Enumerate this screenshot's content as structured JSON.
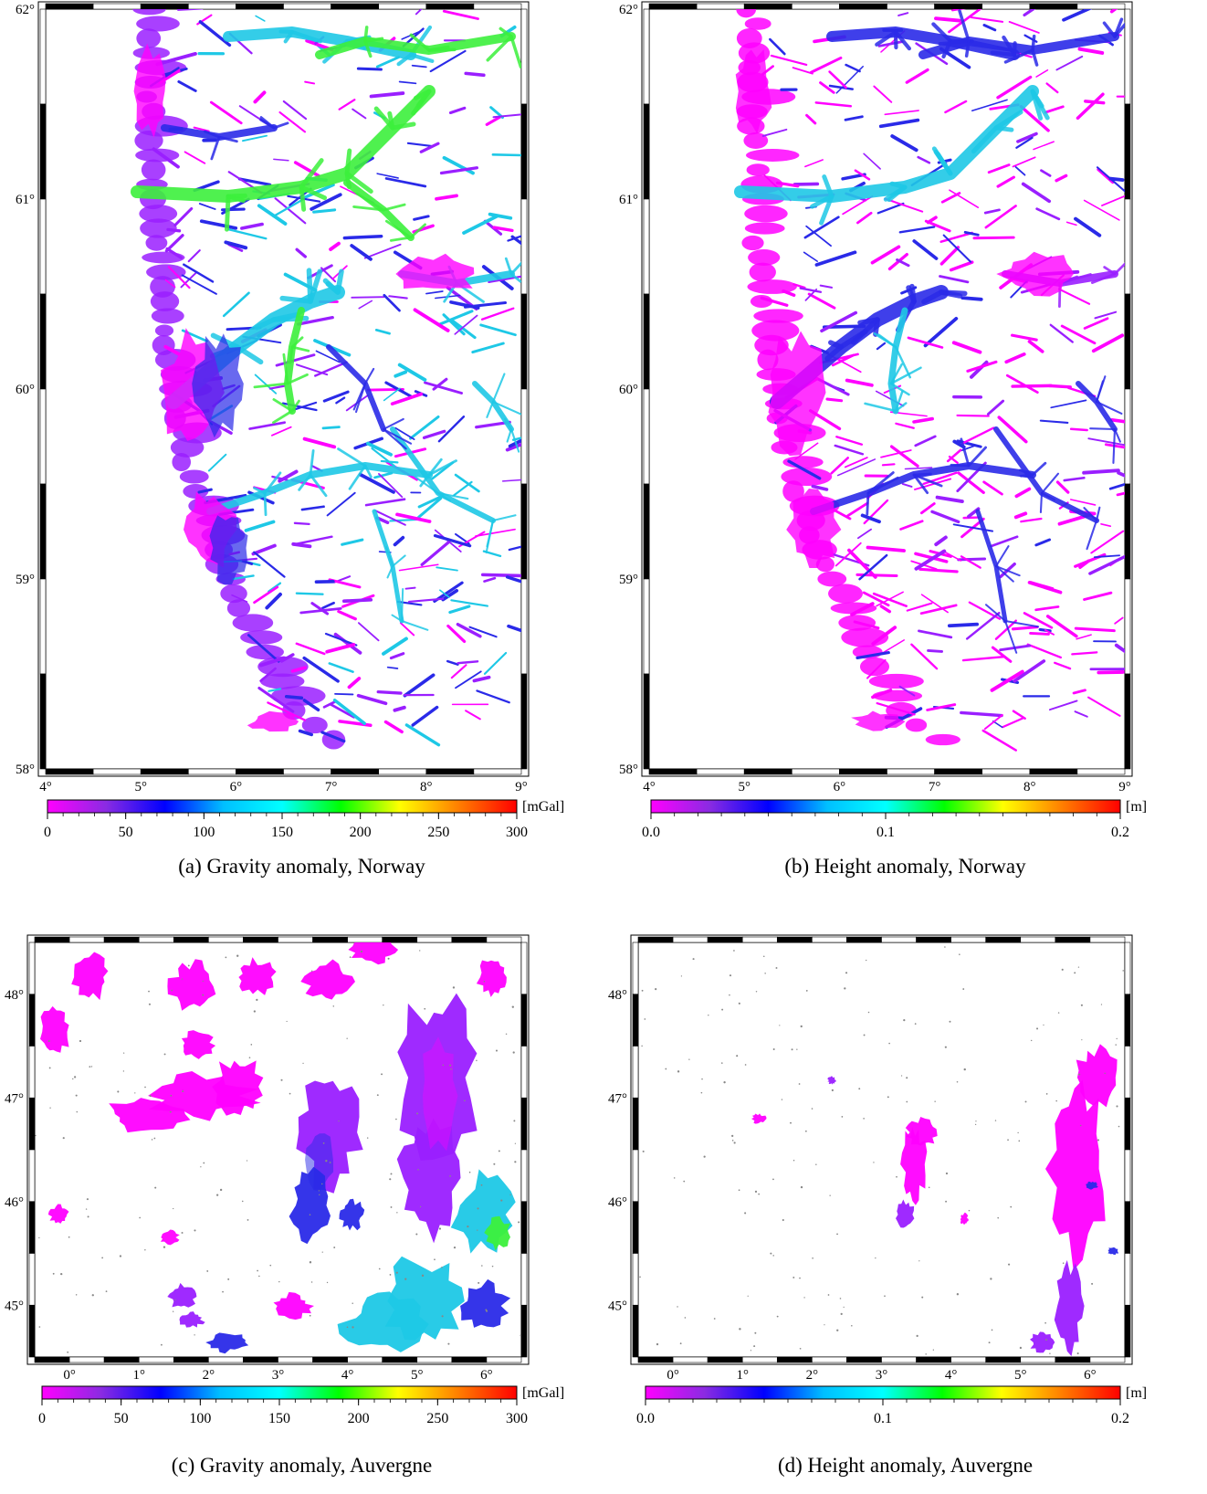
{
  "panels": [
    {
      "id": "a",
      "caption": "(a) Gravity anomaly, Norway",
      "region": "norway",
      "lat_ticks": [
        "58°",
        "59°",
        "60°",
        "61°",
        "62°"
      ],
      "lon_ticks": [
        "4°",
        "5°",
        "6°",
        "7°",
        "8°",
        "9°"
      ],
      "colorbar": {
        "unit": "[mGal]",
        "min": 0,
        "max": 300,
        "labels": [
          "0",
          "50",
          "100",
          "150",
          "200",
          "250",
          "300"
        ]
      },
      "palette": "gravity"
    },
    {
      "id": "b",
      "caption": "(b) Height anomaly, Norway",
      "region": "norway",
      "lat_ticks": [
        "58°",
        "59°",
        "60°",
        "61°",
        "62°"
      ],
      "lon_ticks": [
        "4°",
        "5°",
        "6°",
        "7°",
        "8°",
        "9°"
      ],
      "colorbar": {
        "unit": "[m]",
        "min": 0.0,
        "max": 0.2,
        "labels": [
          "0.0",
          "0.1",
          "0.2"
        ]
      },
      "palette": "height"
    },
    {
      "id": "c",
      "caption": "(c) Gravity anomaly, Auvergne",
      "region": "auvergne",
      "lat_ticks": [
        "45°",
        "46°",
        "47°",
        "48°"
      ],
      "lon_ticks": [
        "0°",
        "1°",
        "2°",
        "3°",
        "4°",
        "5°",
        "6°"
      ],
      "colorbar": {
        "unit": "[mGal]",
        "min": 0,
        "max": 300,
        "labels": [
          "0",
          "50",
          "100",
          "150",
          "200",
          "250",
          "300"
        ]
      },
      "palette": "gravity"
    },
    {
      "id": "d",
      "caption": "(d) Height anomaly, Auvergne",
      "region": "auvergne",
      "lat_ticks": [
        "45°",
        "46°",
        "47°",
        "48°"
      ],
      "lon_ticks": [
        "0°",
        "1°",
        "2°",
        "3°",
        "4°",
        "5°",
        "6°"
      ],
      "colorbar": {
        "unit": "[m]",
        "min": 0.0,
        "max": 0.2,
        "labels": [
          "0.0",
          "0.1",
          "0.2"
        ]
      },
      "palette": "height"
    }
  ],
  "colors": {
    "colormap": [
      "#ff00ff",
      "#8a2be2",
      "#0000ff",
      "#00bfff",
      "#00ffff",
      "#00ff00",
      "#ffff00",
      "#ff8000",
      "#ff0000"
    ],
    "magenta": "#ff00ff",
    "violet": "#9a1fff",
    "blue": "#2a2ae8",
    "cyan": "#1ec8e6",
    "green": "#3cf03c"
  }
}
